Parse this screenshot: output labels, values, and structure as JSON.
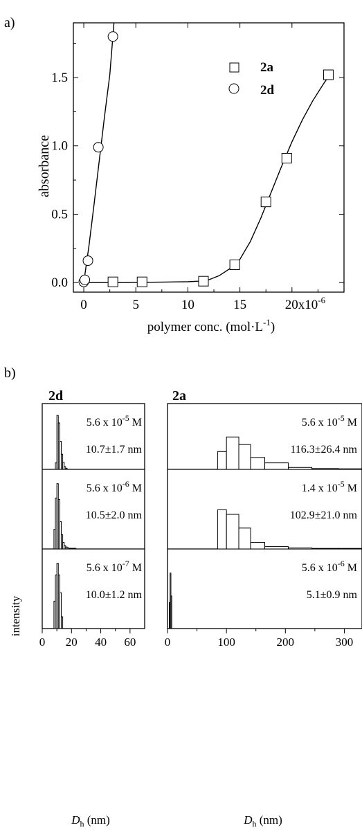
{
  "panel_a": {
    "label": "a)",
    "chart_data": {
      "type": "scatter",
      "xlabel": "polymer conc. (mol·L⁻¹)",
      "ylabel": "absorbance",
      "xlim": [
        -1,
        25
      ],
      "ylim": [
        -0.07,
        1.9
      ],
      "x_ticks": [
        0,
        5,
        10,
        15,
        20
      ],
      "x_tick_labels": [
        "0",
        "5",
        "10",
        "15",
        "20x10⁻⁶"
      ],
      "y_ticks": [
        0.0,
        0.5,
        1.0,
        1.5
      ],
      "y_tick_labels": [
        "0.0",
        "0.5",
        "1.0",
        "1.5"
      ],
      "legend_position": "top-right",
      "series": [
        {
          "name": "2a",
          "marker": "square",
          "x": [
            2.8,
            5.6,
            11.5,
            14.5,
            17.5,
            19.5,
            23.5
          ],
          "y": [
            0.005,
            0.005,
            0.01,
            0.13,
            0.59,
            0.91,
            1.52
          ],
          "fit_x": [
            0,
            2,
            4,
            6,
            8,
            10,
            11,
            12,
            13,
            14,
            15,
            16,
            17,
            18,
            19,
            20,
            21,
            22,
            23,
            23.7
          ],
          "fit_y": [
            0,
            0,
            0,
            0.002,
            0.004,
            0.006,
            0.01,
            0.02,
            0.05,
            0.1,
            0.17,
            0.3,
            0.47,
            0.66,
            0.85,
            1.03,
            1.19,
            1.33,
            1.45,
            1.53
          ]
        },
        {
          "name": "2d",
          "marker": "circle",
          "x": [
            0.0,
            0.1,
            0.4,
            1.4,
            2.8
          ],
          "y": [
            0.005,
            0.02,
            0.16,
            0.99,
            1.8
          ],
          "fit_x": [
            0,
            0.5,
            1,
            1.5,
            2,
            2.5,
            2.9
          ],
          "fit_y": [
            0,
            0.27,
            0.58,
            0.9,
            1.22,
            1.52,
            1.9
          ]
        }
      ]
    }
  },
  "panel_b": {
    "label": "b)",
    "ylabel": "intensity",
    "group_2d": {
      "title": "2d",
      "xlabel": "D",
      "xlabel_sub": "h",
      "xlabel_unit": " (nm)",
      "xlim": [
        0,
        70
      ],
      "x_ticks": [
        0,
        20,
        40,
        60
      ],
      "x_tick_labels": [
        "0",
        "20",
        "40",
        "60"
      ]
    },
    "group_2a": {
      "title": "2a",
      "xlabel": "D",
      "xlabel_sub": "h",
      "xlabel_unit": " (nm)",
      "xlim": [
        0,
        330
      ],
      "x_ticks": [
        0,
        100,
        200,
        300
      ],
      "x_tick_labels": [
        "0",
        "100",
        "200",
        "300"
      ]
    },
    "chart_data": [
      {
        "type": "bar",
        "group": "2d",
        "row": 0,
        "conc_label": "5.6 x 10⁻⁵ M",
        "size_label": "10.7±1.7 nm",
        "bin_width": 1,
        "bin_starts": [
          9,
          10,
          11,
          12,
          13,
          14,
          15,
          16
        ],
        "values": [
          0.12,
          1.0,
          0.86,
          0.52,
          0.28,
          0.13,
          0.05,
          0.02
        ]
      },
      {
        "type": "bar",
        "group": "2d",
        "row": 1,
        "conc_label": "5.6 x 10⁻⁶ M",
        "size_label": "10.5±2.0 nm",
        "bin_width": 1,
        "bin_starts": [
          8,
          9,
          10,
          11,
          12,
          13,
          14,
          15,
          16,
          17,
          18,
          19,
          20,
          21,
          22
        ],
        "values": [
          0.3,
          0.78,
          1.0,
          0.76,
          0.42,
          0.22,
          0.1,
          0.05,
          0.03,
          0.02,
          0.01,
          0.01,
          0.01,
          0.01,
          0.01
        ]
      },
      {
        "type": "bar",
        "group": "2d",
        "row": 2,
        "conc_label": "5.6 x 10⁻⁷ M",
        "size_label": "10.0±1.2 nm",
        "bin_width": 1,
        "bin_starts": [
          8,
          9,
          10,
          11,
          12,
          13
        ],
        "values": [
          0.42,
          0.82,
          1.0,
          0.82,
          0.55,
          0.18
        ]
      },
      {
        "type": "bar",
        "group": "2a",
        "row": 0,
        "conc_label": "5.6 x 10⁻⁵ M",
        "size_label": "116.3±26.4 nm",
        "bin_edges": [
          85,
          100,
          121,
          141,
          165,
          205,
          245,
          290,
          330
        ],
        "values": [
          0.33,
          0.6,
          0.46,
          0.22,
          0.12,
          0.035,
          0.015,
          0.005
        ]
      },
      {
        "type": "bar",
        "group": "2a",
        "row": 1,
        "conc_label": "1.4 x 10⁻⁵ M",
        "size_label": "102.9±21.0 nm",
        "bin_edges": [
          85,
          100,
          121,
          141,
          165,
          205,
          245,
          290,
          330
        ],
        "values": [
          0.6,
          0.53,
          0.32,
          0.1,
          0.036,
          0.015,
          0.005,
          0.005
        ]
      },
      {
        "type": "bar",
        "group": "2a",
        "row": 2,
        "conc_label": "5.6 x 10⁻⁶ M",
        "size_label": "5.1±0.9 nm",
        "bin_width": 1.4,
        "bin_starts": [
          3,
          4.4,
          5.8
        ],
        "values": [
          0.4,
          0.85,
          0.5
        ]
      }
    ]
  }
}
